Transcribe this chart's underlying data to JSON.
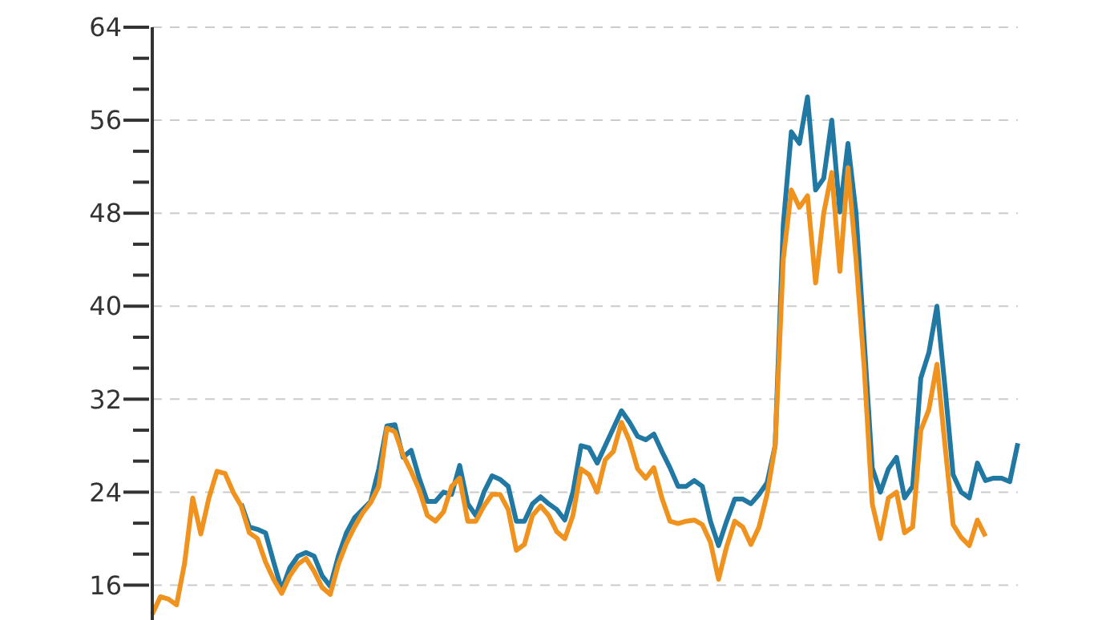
{
  "chart_data": {
    "type": "line",
    "categories": [
      null,
      null,
      null,
      null,
      null,
      null,
      null,
      null,
      null,
      null,
      null,
      null,
      null,
      null,
      null,
      null,
      null,
      null,
      null,
      null,
      null,
      null,
      null,
      null,
      null,
      null,
      null,
      null,
      null,
      null,
      null,
      null,
      null,
      null,
      null,
      null,
      null,
      null,
      null,
      null,
      null,
      null,
      null,
      null,
      null,
      null,
      null,
      null,
      null,
      null,
      null,
      null,
      null,
      null,
      null,
      null,
      null,
      null,
      null,
      null,
      null,
      null,
      null,
      null,
      null,
      null,
      null,
      null,
      null,
      null,
      null,
      null,
      null,
      null,
      null,
      null,
      null,
      null,
      null,
      null,
      null,
      null,
      null,
      null,
      null,
      null,
      null,
      null,
      null,
      null,
      null,
      null,
      null,
      null,
      null,
      null,
      null,
      null,
      null,
      null,
      null,
      null,
      null,
      null,
      null,
      null,
      null,
      null
    ],
    "series": [
      {
        "color": "#2179a3",
        "values": [
          null,
          null,
          null,
          null,
          null,
          null,
          null,
          null,
          null,
          null,
          null,
          23,
          21,
          20.8,
          20.5,
          18,
          15.6,
          17.5,
          18.5,
          18.8,
          18.5,
          16.8,
          15.9,
          18.5,
          20.5,
          21.8,
          22.5,
          23.2,
          26,
          29.7,
          29.8,
          27,
          27.6,
          25.2,
          23.2,
          23.2,
          24,
          23.8,
          26.3,
          23,
          22,
          24,
          25.4,
          25.1,
          24.5,
          21.5,
          21.5,
          23,
          23.6,
          23,
          22.5,
          21.6,
          24,
          28,
          27.8,
          26.5,
          28,
          29.5,
          31,
          30,
          28.8,
          28.5,
          29,
          27.5,
          26.1,
          24.5,
          24.5,
          25,
          24.5,
          21.5,
          19.4,
          21.5,
          23.4,
          23.4,
          23,
          23.8,
          24.8,
          28,
          47,
          55,
          54,
          58,
          50,
          51,
          56,
          48.1,
          54,
          48,
          37.1,
          26.1,
          24,
          26,
          27,
          23.5,
          24.5,
          33.8,
          36,
          40,
          33,
          25.5,
          24,
          23.5,
          26.5,
          25,
          25.2,
          25.2,
          24.9,
          28.2
        ]
      },
      {
        "color": "#f0921e",
        "values": [
          13.5,
          15,
          14.8,
          14.3,
          17.9,
          23.5,
          20.4,
          23.5,
          25.8,
          25.6,
          24,
          22.8,
          20.5,
          20,
          18,
          16.5,
          15.3,
          16.8,
          17.8,
          18.3,
          17.2,
          15.8,
          15.2,
          17.8,
          19.6,
          21,
          22.2,
          23.1,
          24.5,
          29.5,
          29.2,
          27.2,
          25.8,
          24.2,
          22,
          21.5,
          22.3,
          24.5,
          25.2,
          21.5,
          21.5,
          22.8,
          23.8,
          23.8,
          22.5,
          19,
          19.5,
          22,
          22.8,
          22,
          20.6,
          20,
          22,
          26,
          25.5,
          24,
          26.8,
          27.5,
          30,
          28.4,
          26,
          25.2,
          26.1,
          23.5,
          21.5,
          21.3,
          21.5,
          21.6,
          21.2,
          19.7,
          16.5,
          19.3,
          21.5,
          21,
          19.5,
          21,
          23.8,
          28,
          44,
          50,
          48.5,
          49.5,
          42,
          48,
          51.5,
          43,
          51.9,
          44,
          34.8,
          23,
          20,
          23.5,
          24,
          20.5,
          21,
          29.3,
          31.1,
          35,
          28,
          21.2,
          20.1,
          19.4,
          21.6,
          20.2,
          null,
          null,
          null,
          null
        ]
      }
    ],
    "ylim": [
      13,
      64
    ],
    "yticks": [
      16,
      {
        "value": 18.67,
        "label": null
      },
      {
        "value": 21.33,
        "label": null
      },
      24,
      {
        "value": 26.67,
        "label": null
      },
      {
        "value": 29.33,
        "label": null
      },
      32,
      {
        "value": 34.67,
        "label": null
      },
      {
        "value": 37.33,
        "label": null
      },
      40,
      {
        "value": 42.67,
        "label": null
      },
      {
        "value": 45.33,
        "label": null
      },
      48,
      {
        "value": 50.67,
        "label": null
      },
      {
        "value": 53.33,
        "label": null
      },
      56,
      {
        "value": 58.67,
        "label": null
      },
      {
        "value": 61.33,
        "label": null
      },
      64
    ],
    "grid": "y",
    "tick_labels": "y",
    "line_style": "solid",
    "marker": "none"
  }
}
